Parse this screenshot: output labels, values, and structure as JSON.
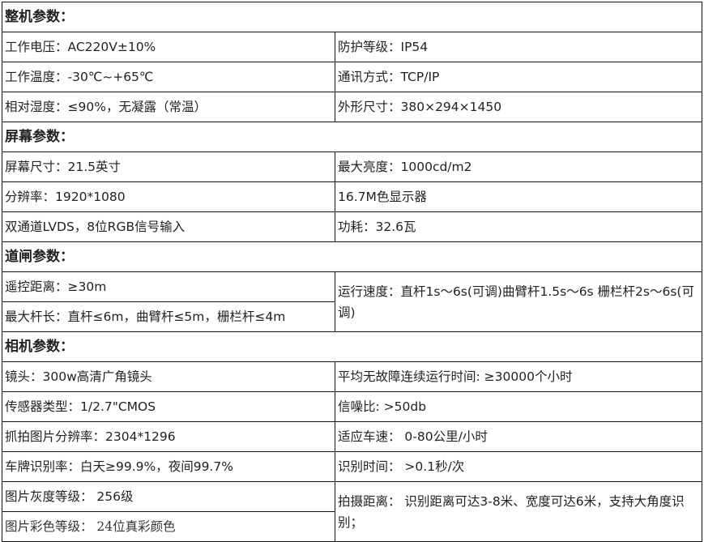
{
  "sections": {
    "machine": {
      "title": "整机参数：",
      "rows": [
        [
          "工作电压：AC220V±10%",
          "防护等级：IP54"
        ],
        [
          "工作温度：-30℃~+65℃",
          "通讯方式：TCP/IP"
        ],
        [
          "相对湿度：≤90%，无凝露（常温）",
          "外形尺寸：380×294×1450"
        ]
      ]
    },
    "screen": {
      "title": "屏幕参数：",
      "rows": [
        [
          "屏幕尺寸：21.5英寸",
          "最大亮度：1000cd/m2"
        ],
        [
          "分辨率：1920*1080",
          "16.7M色显示器"
        ],
        [
          "双通道LVDS，8位RGB信号输入",
          "功耗：32.6瓦"
        ]
      ]
    },
    "gate": {
      "title": "道闸参数：",
      "left": [
        "遥控距离：≥30m",
        "最大杆长：直杆≤6m，曲臂杆≤5m，栅栏杆≤4m"
      ],
      "right": "运行速度：直杆1s～6s(可调)曲臂杆1.5s～6s 栅栏杆2s～6s(可调)"
    },
    "camera": {
      "title": "相机参数：",
      "rows": [
        [
          "镜头：300w高清广角镜头",
          "平均无故障连续运行时间: ≥30000个小时"
        ],
        [
          "传感器类型：1/2.7\"CMOS",
          "信噪比: >50db"
        ],
        [
          "抓拍图片分辨率：2304*1296",
          "适应车速： 0-80公里/小时"
        ],
        [
          "车牌识别率：白天≥99.9%，夜间99.7%",
          "识别时间： >0.1秒/次"
        ]
      ],
      "last_left": [
        "图片灰度等级： 256级",
        "图片彩色等级： 24位真彩颜色"
      ],
      "last_right": "拍摄距离： 识别距离可达3-8米、宽度可达6米，支持大角度识别；"
    }
  }
}
